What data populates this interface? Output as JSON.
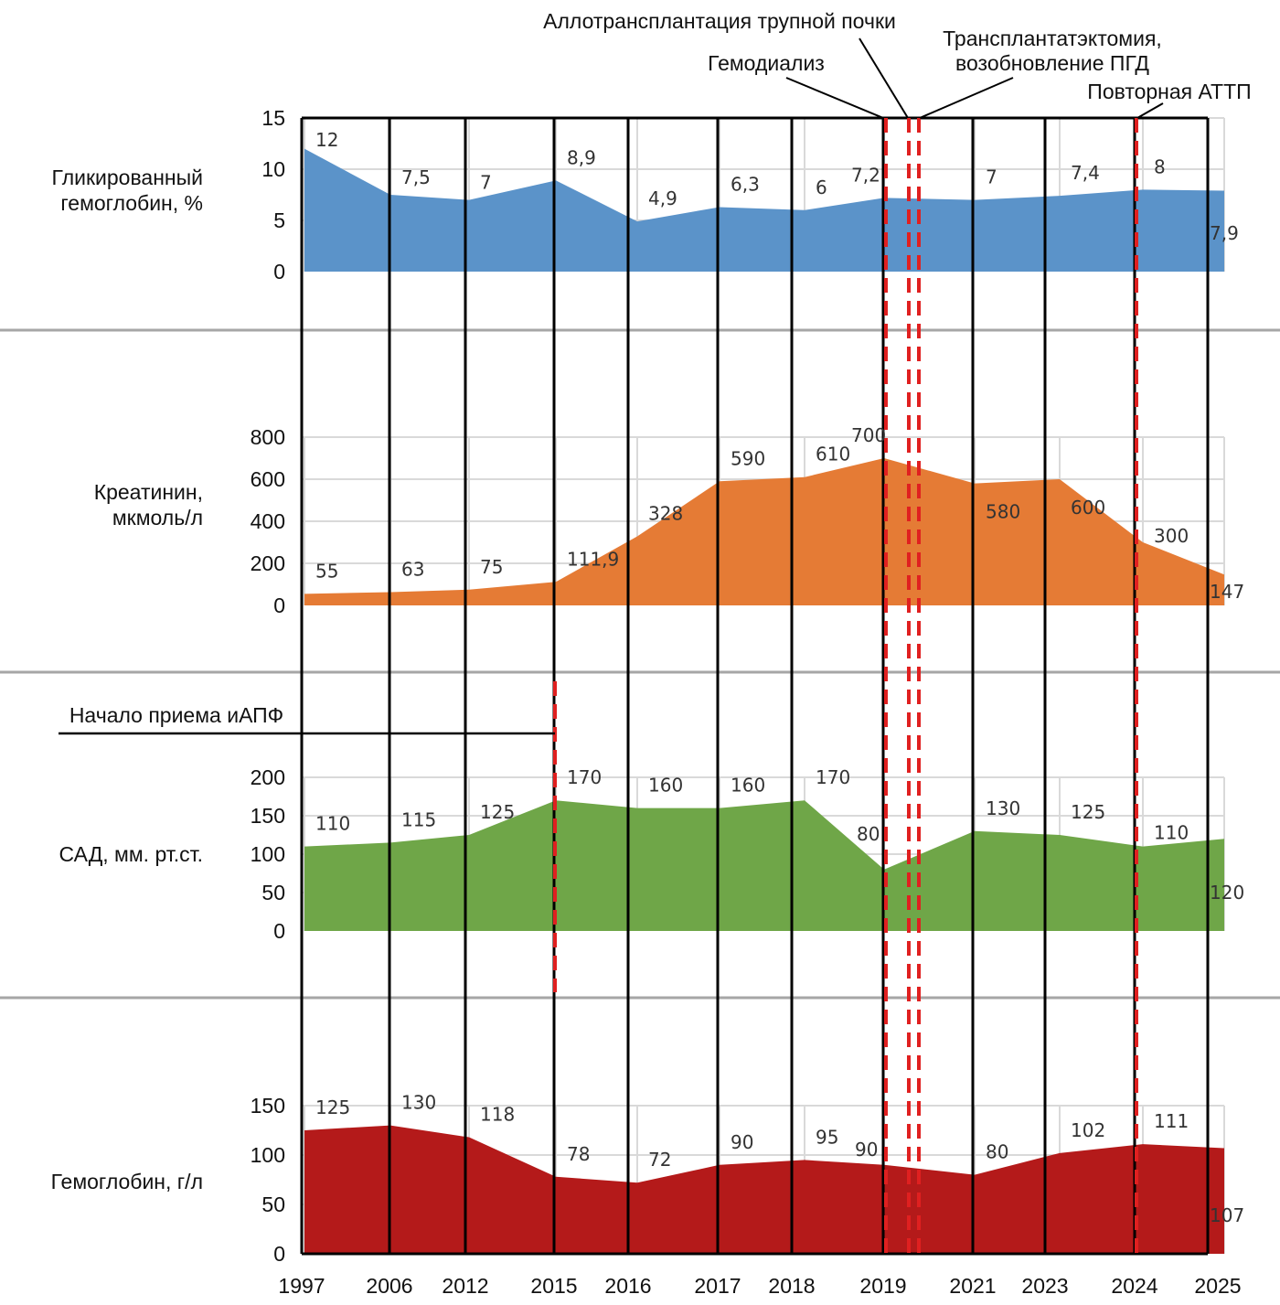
{
  "chart_data": {
    "type": "area",
    "title": "",
    "years": [
      "1997",
      "2006",
      "2012",
      "2015",
      "2016",
      "2017",
      "2018",
      "2019",
      "2021",
      "2023",
      "2024",
      "2025"
    ],
    "x_index": [
      0,
      1,
      2,
      3,
      4,
      5,
      6,
      7,
      7.3,
      8,
      9,
      10,
      11
    ],
    "panels": [
      {
        "id": "hba1c",
        "label_lines": [
          "Гликированный",
          "гемоглобин, %"
        ],
        "color": "#5B93C9",
        "ylim": [
          0,
          15
        ],
        "yticks": [
          "0",
          "5",
          "10",
          "15"
        ],
        "ytick_values": [
          0,
          5,
          10,
          15
        ],
        "points": [
          {
            "x": 0,
            "value": 12,
            "label": "12"
          },
          {
            "x": 1,
            "value": 7.5,
            "label": "7,5"
          },
          {
            "x": 2,
            "value": 7,
            "label": "7"
          },
          {
            "x": 3,
            "value": 8.9,
            "label": "8,9"
          },
          {
            "x": 4,
            "value": 4.9,
            "label": "4,9"
          },
          {
            "x": 5,
            "value": 6.3,
            "label": "6,3"
          },
          {
            "x": 6,
            "value": 6,
            "label": "6"
          },
          {
            "x": 7,
            "value": 7.2,
            "label": "7,2"
          },
          {
            "x": 8,
            "value": 7,
            "label": "7"
          },
          {
            "x": 9,
            "value": 7.4,
            "label": "7,4"
          },
          {
            "x": 10,
            "value": 8,
            "label": "8"
          },
          {
            "x": 11,
            "value": 7.9,
            "label": "7,9"
          }
        ]
      },
      {
        "id": "creatinine",
        "label_lines": [
          "Креатинин,",
          "мкмоль/л"
        ],
        "color": "#E57B35",
        "ylim": [
          0,
          800
        ],
        "yticks": [
          "0",
          "200",
          "400",
          "600",
          "800"
        ],
        "ytick_values": [
          0,
          200,
          400,
          600,
          800
        ],
        "points": [
          {
            "x": 0,
            "value": 55,
            "label": "55"
          },
          {
            "x": 1,
            "value": 63,
            "label": "63"
          },
          {
            "x": 2,
            "value": 75,
            "label": "75"
          },
          {
            "x": 3,
            "value": 111.9,
            "label": "111,9"
          },
          {
            "x": 4,
            "value": 328,
            "label": "328"
          },
          {
            "x": 5,
            "value": 590,
            "label": "590"
          },
          {
            "x": 6,
            "value": 610,
            "label": "610"
          },
          {
            "x": 7,
            "value": 700,
            "label": "700"
          },
          {
            "x": 8,
            "value": 580,
            "label": "580"
          },
          {
            "x": 9,
            "value": 600,
            "label": "600"
          },
          {
            "x": 10,
            "value": 300,
            "label": "300"
          },
          {
            "x": 11,
            "value": 147,
            "label": "147"
          }
        ]
      },
      {
        "id": "sbp",
        "label_lines": [
          "САД, мм. рт.ст."
        ],
        "color": "#6FA648",
        "ylim": [
          0,
          200
        ],
        "yticks": [
          "0",
          "50",
          "100",
          "150",
          "200"
        ],
        "ytick_values": [
          0,
          50,
          100,
          150,
          200
        ],
        "points": [
          {
            "x": 0,
            "value": 110,
            "label": "110"
          },
          {
            "x": 1,
            "value": 115,
            "label": "115"
          },
          {
            "x": 2,
            "value": 125,
            "label": "125"
          },
          {
            "x": 3,
            "value": 170,
            "label": "170"
          },
          {
            "x": 4,
            "value": 160,
            "label": "160"
          },
          {
            "x": 5,
            "value": 160,
            "label": "160"
          },
          {
            "x": 6,
            "value": 170,
            "label": "170"
          },
          {
            "x": 7,
            "value": 80,
            "label": "80"
          },
          {
            "x": 8,
            "value": 130,
            "label": "130"
          },
          {
            "x": 9,
            "value": 125,
            "label": "125"
          },
          {
            "x": 10,
            "value": 110,
            "label": "110"
          },
          {
            "x": 11,
            "value": 120,
            "label": "120"
          }
        ]
      },
      {
        "id": "hemoglobin",
        "label_lines": [
          "Гемоглобин, г/л"
        ],
        "color": "#B41A1A",
        "ylim": [
          0,
          150
        ],
        "yticks": [
          "0",
          "50",
          "100",
          "150"
        ],
        "ytick_values": [
          0,
          50,
          100,
          150
        ],
        "points": [
          {
            "x": 0,
            "value": 125,
            "label": "125"
          },
          {
            "x": 1,
            "value": 130,
            "label": "130"
          },
          {
            "x": 2,
            "value": 118,
            "label": "118"
          },
          {
            "x": 3,
            "value": 78,
            "label": "78"
          },
          {
            "x": 4,
            "value": 72,
            "label": "72"
          },
          {
            "x": 5,
            "value": 90,
            "label": "90"
          },
          {
            "x": 6,
            "value": 95,
            "label": "95"
          },
          {
            "x": 7,
            "value": 90,
            "label": "90"
          },
          {
            "x": 8,
            "value": 80,
            "label": "80"
          },
          {
            "x": 9,
            "value": 102,
            "label": "102"
          },
          {
            "x": 10,
            "value": 111,
            "label": "111"
          },
          {
            "x": 11,
            "value": 107,
            "label": "107"
          }
        ]
      }
    ],
    "events": [
      {
        "id": "hemodialysis",
        "label": "Гемодиализ",
        "year": "2019"
      },
      {
        "id": "transplant",
        "label": "Аллотрансплантация трупной почки",
        "year": "2019-2021"
      },
      {
        "id": "graftectomy",
        "label_lines": [
          "Трансплантатэктомия,",
          "возобновление ПГД"
        ],
        "year": "2019-2021"
      },
      {
        "id": "repeat-transplant",
        "label": "Повторная АТТП",
        "year": "2024"
      },
      {
        "id": "ace-inhibitor-start",
        "label": "Начало приема иАПФ",
        "year": "2015"
      }
    ],
    "event_line_color": "#E02020",
    "grid": true,
    "legend": "none"
  }
}
